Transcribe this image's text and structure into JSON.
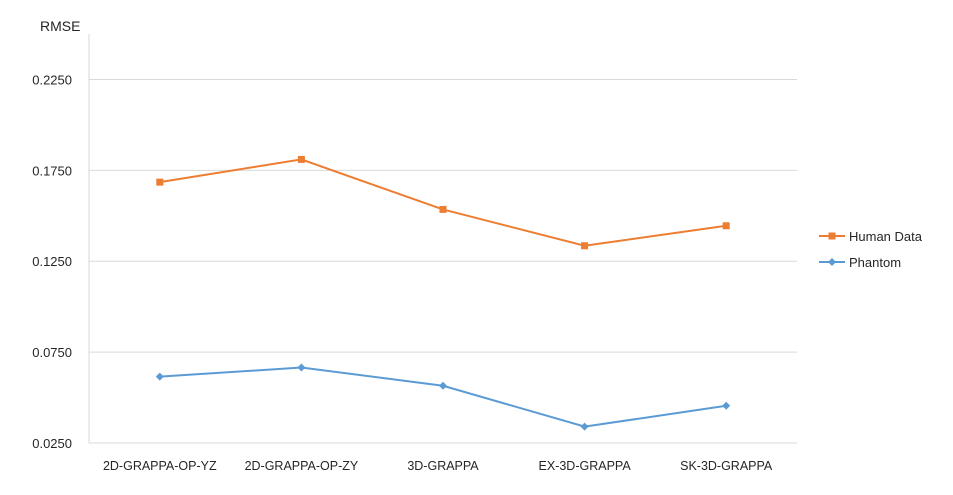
{
  "chart_data": {
    "type": "line",
    "title": "",
    "xlabel": "",
    "ylabel": "RMSE",
    "categories": [
      "2D-GRAPPA-OP-YZ",
      "2D-GRAPPA-OP-ZY",
      "3D-GRAPPA",
      "EX-3D-GRAPPA",
      "SK-3D-GRAPPA"
    ],
    "ylim": [
      0.025,
      0.25
    ],
    "yticks": [
      "0.0250",
      "0.0750",
      "0.1250",
      "0.1750",
      "0.2250"
    ],
    "grid": true,
    "legend_position": "right",
    "series": [
      {
        "name": "Human Data",
        "values": [
          0.1685,
          0.181,
          0.1535,
          0.1335,
          0.1445
        ],
        "color": "#ed7d31",
        "marker": "square"
      },
      {
        "name": "Phantom",
        "values": [
          0.0615,
          0.0665,
          0.0565,
          0.034,
          0.0455
        ],
        "color": "#5b9bd5",
        "marker": "diamond"
      }
    ]
  }
}
